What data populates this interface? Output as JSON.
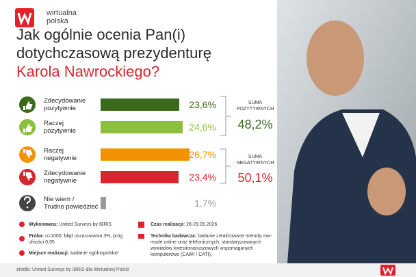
{
  "header": {
    "brand": [
      "wirtualna",
      "polska"
    ],
    "title_lines": [
      "Jak ogólnie ocenia Pan(i)",
      "dotychczasową prezydenturę"
    ],
    "title_highlight": "Karola Nawrockiego?"
  },
  "chart_data": {
    "type": "bar",
    "orientation": "horizontal",
    "categories": [
      "Zdecydowanie\npozytywnie",
      "Raczej\npozytywnie",
      "Raczej\nnegatywnie",
      "Zdecydowanie\nnegatywnie",
      "Nie wiem /\nTrudno powiedzieć"
    ],
    "values": [
      23.6,
      24.6,
      26.7,
      23.4,
      1.7
    ],
    "value_labels": [
      "23,6%",
      "24,6%",
      "26,7%",
      "23,4%",
      "1,7%"
    ],
    "colors": [
      "#3b6a1c",
      "#8cbf3f",
      "#f39200",
      "#d7262c",
      "#9a9a9a"
    ]
  },
  "summary": [
    {
      "label": "SUMA\nPOZYTYWNYCH",
      "value": "48,2%",
      "color": "#3b6a1c"
    },
    {
      "label": "SUMA\nNEGATYWNYCH",
      "value": "50,1%",
      "color": "#d7262c"
    }
  ],
  "method": {
    "left": [
      {
        "key": "Wykonawca:",
        "text": "United Surveys by IBRiS"
      },
      {
        "key": "Próba:",
        "text": "n=1000, błąd oszacowania 3%, próg ufności 0,95"
      },
      {
        "key": "Miejsce realizacji:",
        "text": "badanie ogólnopolskie"
      }
    ],
    "right": [
      {
        "key": "Czas realizacji:",
        "text": "28-29.05.2026"
      },
      {
        "key": "Technika badawcza:",
        "text": "badanie zrealizowane metodą mix-mode online oraz telefonicznych, standaryzowanych wywiadów kwestionariuszowych wspomaganych komputerowo (CAWI / CATI)."
      }
    ]
  },
  "footer": {
    "source": "źródło: United Surveys by IBRiS dla Wirtualnej Polski"
  }
}
